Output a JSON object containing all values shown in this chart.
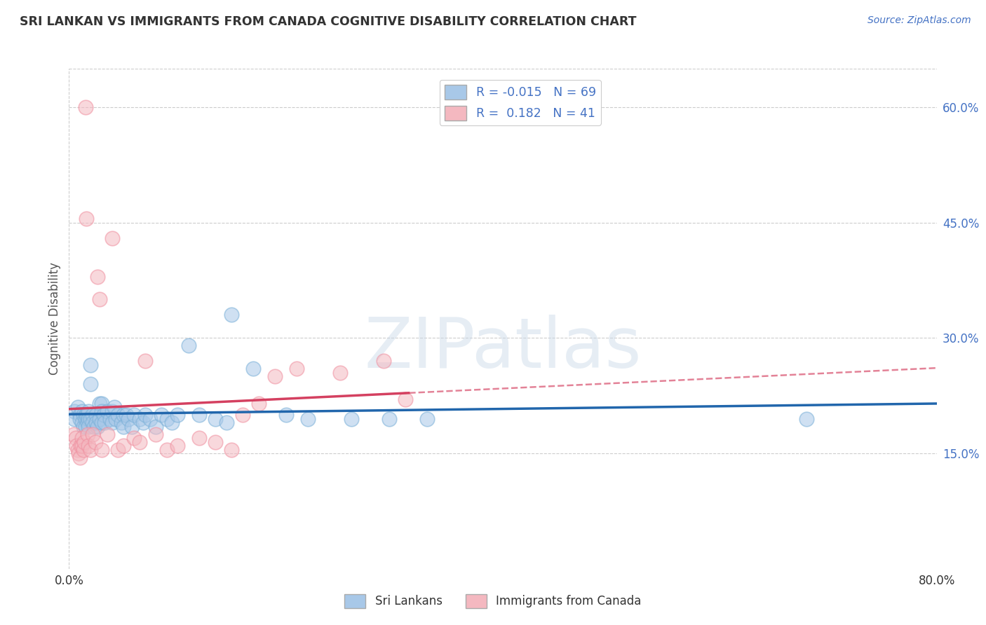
{
  "title": "SRI LANKAN VS IMMIGRANTS FROM CANADA COGNITIVE DISABILITY CORRELATION CHART",
  "source": "Source: ZipAtlas.com",
  "ylabel": "Cognitive Disability",
  "watermark": "ZIPatlas",
  "xlim": [
    0.0,
    0.8
  ],
  "ylim": [
    0.0,
    0.65
  ],
  "xticks": [
    0.0,
    0.1,
    0.2,
    0.3,
    0.4,
    0.5,
    0.6,
    0.7,
    0.8
  ],
  "yticks_right": [
    0.15,
    0.3,
    0.45,
    0.6
  ],
  "ytick_right_labels": [
    "15.0%",
    "30.0%",
    "45.0%",
    "60.0%"
  ],
  "gridline_y": [
    0.15,
    0.3,
    0.45,
    0.6
  ],
  "sri_lankan_R": -0.015,
  "sri_lankan_N": 69,
  "immigrants_R": 0.182,
  "immigrants_N": 41,
  "legend_label_1": "Sri Lankans",
  "legend_label_2": "Immigrants from Canada",
  "color_blue": "#a8c8e8",
  "color_pink": "#f4b8c0",
  "color_blue_edge": "#7ab0d8",
  "color_pink_edge": "#f090a0",
  "color_blue_line": "#2166ac",
  "color_pink_line": "#d44060",
  "sri_lankans_x": [
    0.005,
    0.005,
    0.008,
    0.01,
    0.01,
    0.012,
    0.012,
    0.013,
    0.013,
    0.015,
    0.015,
    0.015,
    0.016,
    0.017,
    0.017,
    0.018,
    0.018,
    0.018,
    0.02,
    0.02,
    0.02,
    0.022,
    0.022,
    0.023,
    0.025,
    0.025,
    0.026,
    0.028,
    0.028,
    0.03,
    0.03,
    0.03,
    0.032,
    0.033,
    0.035,
    0.038,
    0.04,
    0.04,
    0.042,
    0.043,
    0.045,
    0.048,
    0.05,
    0.05,
    0.053,
    0.055,
    0.058,
    0.06,
    0.065,
    0.068,
    0.07,
    0.075,
    0.08,
    0.085,
    0.09,
    0.095,
    0.1,
    0.11,
    0.12,
    0.135,
    0.145,
    0.15,
    0.17,
    0.2,
    0.22,
    0.26,
    0.295,
    0.33,
    0.68
  ],
  "sri_lankans_y": [
    0.205,
    0.195,
    0.21,
    0.2,
    0.195,
    0.205,
    0.19,
    0.2,
    0.185,
    0.2,
    0.195,
    0.185,
    0.2,
    0.2,
    0.19,
    0.205,
    0.195,
    0.185,
    0.265,
    0.24,
    0.195,
    0.2,
    0.19,
    0.185,
    0.2,
    0.19,
    0.185,
    0.215,
    0.195,
    0.215,
    0.205,
    0.19,
    0.2,
    0.19,
    0.205,
    0.195,
    0.205,
    0.19,
    0.21,
    0.195,
    0.2,
    0.19,
    0.2,
    0.185,
    0.2,
    0.195,
    0.185,
    0.2,
    0.195,
    0.19,
    0.2,
    0.195,
    0.185,
    0.2,
    0.195,
    0.19,
    0.2,
    0.29,
    0.2,
    0.195,
    0.19,
    0.33,
    0.26,
    0.2,
    0.195,
    0.195,
    0.195,
    0.195,
    0.195
  ],
  "immigrants_x": [
    0.004,
    0.006,
    0.007,
    0.008,
    0.009,
    0.01,
    0.011,
    0.012,
    0.012,
    0.013,
    0.014,
    0.015,
    0.016,
    0.017,
    0.018,
    0.02,
    0.022,
    0.024,
    0.026,
    0.028,
    0.03,
    0.035,
    0.04,
    0.045,
    0.05,
    0.06,
    0.065,
    0.07,
    0.08,
    0.09,
    0.1,
    0.12,
    0.135,
    0.15,
    0.16,
    0.175,
    0.19,
    0.21,
    0.25,
    0.29,
    0.31
  ],
  "immigrants_y": [
    0.175,
    0.17,
    0.16,
    0.155,
    0.15,
    0.145,
    0.16,
    0.17,
    0.16,
    0.155,
    0.165,
    0.6,
    0.455,
    0.175,
    0.16,
    0.155,
    0.175,
    0.165,
    0.38,
    0.35,
    0.155,
    0.175,
    0.43,
    0.155,
    0.16,
    0.17,
    0.165,
    0.27,
    0.175,
    0.155,
    0.16,
    0.17,
    0.165,
    0.155,
    0.2,
    0.215,
    0.25,
    0.26,
    0.255,
    0.27,
    0.22
  ]
}
